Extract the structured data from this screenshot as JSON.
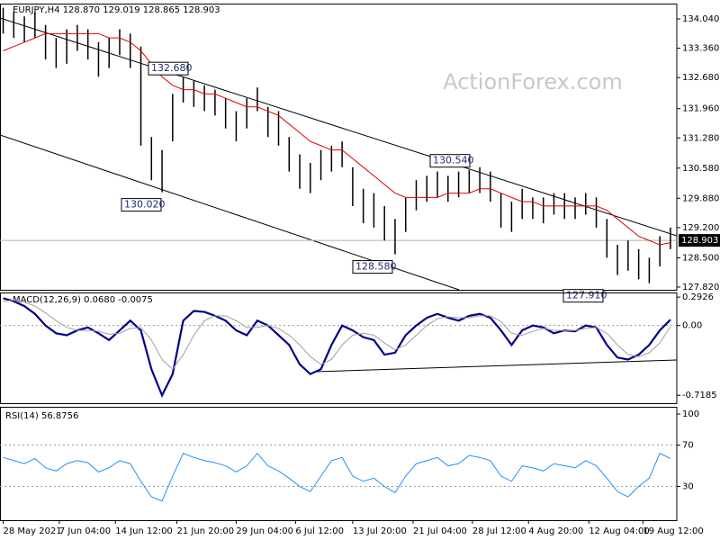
{
  "chart_data": [
    {
      "type": "hilo",
      "title": "EURJPY,H4  128.870 129.019 128.865 128.903",
      "watermark": "ActionForex.com",
      "bar_color": "#000000",
      "ma_color": "#e00000",
      "high": [
        134.3,
        134.2,
        134.1,
        134.2,
        133.9,
        133.6,
        133.8,
        133.9,
        133.8,
        133.5,
        133.6,
        133.8,
        133.7,
        133.4,
        131.3,
        131.0,
        132.3,
        132.68,
        132.6,
        132.5,
        132.4,
        132.2,
        131.9,
        132.2,
        132.45,
        132.0,
        131.9,
        131.3,
        130.9,
        130.7,
        131.0,
        131.1,
        131.2,
        130.6,
        130.1,
        130.0,
        129.7,
        129.4,
        129.9,
        130.3,
        130.4,
        130.5,
        130.4,
        130.5,
        130.54,
        130.6,
        130.5,
        130.0,
        129.8,
        130.1,
        129.9,
        129.9,
        130.0,
        130.0,
        129.9,
        130.0,
        129.9,
        129.4,
        128.8,
        128.9,
        128.7,
        128.5,
        129.0,
        129.2
      ],
      "low": [
        133.7,
        133.6,
        133.5,
        133.6,
        133.1,
        132.9,
        133.0,
        133.3,
        133.1,
        132.7,
        132.9,
        133.2,
        132.9,
        131.1,
        130.3,
        130.02,
        131.2,
        132.1,
        132.0,
        131.9,
        131.8,
        131.5,
        131.2,
        131.5,
        131.9,
        131.3,
        131.1,
        130.5,
        130.1,
        130.0,
        130.3,
        130.5,
        130.6,
        129.7,
        129.3,
        129.2,
        128.9,
        128.58,
        129.1,
        129.6,
        129.8,
        129.9,
        129.8,
        129.9,
        130.0,
        130.0,
        129.8,
        129.2,
        129.1,
        129.4,
        129.4,
        129.3,
        129.5,
        129.4,
        129.4,
        129.5,
        129.2,
        128.5,
        128.1,
        128.2,
        128.0,
        127.91,
        128.3,
        128.7
      ],
      "ma": [
        133.3,
        133.4,
        133.5,
        133.6,
        133.7,
        133.7,
        133.7,
        133.7,
        133.7,
        133.7,
        133.6,
        133.6,
        133.5,
        133.3,
        133.0,
        132.7,
        132.5,
        132.4,
        132.4,
        132.3,
        132.3,
        132.2,
        132.1,
        132.0,
        132.0,
        131.9,
        131.8,
        131.6,
        131.4,
        131.2,
        131.1,
        131.0,
        131.0,
        130.8,
        130.6,
        130.4,
        130.2,
        130.0,
        129.9,
        129.9,
        129.9,
        129.9,
        130.0,
        130.0,
        130.0,
        130.1,
        130.1,
        130.0,
        129.9,
        129.8,
        129.8,
        129.7,
        129.7,
        129.7,
        129.7,
        129.7,
        129.7,
        129.6,
        129.4,
        129.2,
        129.0,
        128.9,
        128.8,
        128.85
      ],
      "current": {
        "value": 128.903,
        "label": "128.903"
      },
      "annotations": [
        {
          "value": 132.68,
          "label": "132.680"
        },
        {
          "value": 130.02,
          "label": "130.020"
        },
        {
          "value": 128.58,
          "label": "128.580"
        },
        {
          "value": 130.54,
          "label": "130.540"
        },
        {
          "value": 127.91,
          "label": "127.910"
        }
      ],
      "ylim": [
        127.757,
        134.396
      ],
      "yticks": [
        {
          "value": 134.04,
          "label": "134.040"
        },
        {
          "value": 133.36,
          "label": "133.360"
        },
        {
          "value": 132.68,
          "label": "132.680"
        },
        {
          "value": 131.96,
          "label": "131.960"
        },
        {
          "value": 131.28,
          "label": "131.280"
        },
        {
          "value": 130.58,
          "label": "130.580"
        },
        {
          "value": 129.88,
          "label": "129.880"
        },
        {
          "value": 129.2,
          "label": "129.200"
        },
        {
          "value": 128.5,
          "label": "128.500"
        },
        {
          "value": 127.82,
          "label": "127.820"
        }
      ],
      "xlim": [
        -0.3,
        63.6
      ],
      "xticks": [
        {
          "value": 0,
          "label": "28 May 2021"
        },
        {
          "value": 5.3,
          "label": "7 Jun 04:00"
        },
        {
          "value": 10.6,
          "label": "14 Jun 12:00"
        },
        {
          "value": 16.4,
          "label": "21 Jun 20:00"
        },
        {
          "value": 22.0,
          "label": "29 Jun 04:00"
        },
        {
          "value": 27.6,
          "label": "6 Jul 12:00"
        },
        {
          "value": 33.0,
          "label": "13 Jul 20:00"
        },
        {
          "value": 38.7,
          "label": "21 Jul 04:00"
        },
        {
          "value": 44.3,
          "label": "28 Jul 12:00"
        },
        {
          "value": 49.6,
          "label": "4 Aug 20:00"
        },
        {
          "value": 55.3,
          "label": "12 Aug 04:00"
        },
        {
          "value": 60.4,
          "label": "19 Aug 12:00"
        }
      ]
    },
    {
      "type": "line",
      "title": "MACD(12,26,9) 0.0680 -0.0075",
      "series": [
        {
          "color": "#00008b",
          "values": [
            0.28,
            0.25,
            0.2,
            0.12,
            0.0,
            -0.08,
            -0.1,
            -0.05,
            -0.02,
            -0.08,
            -0.15,
            -0.05,
            0.05,
            -0.05,
            -0.45,
            -0.72,
            -0.5,
            0.05,
            0.15,
            0.14,
            0.1,
            0.05,
            -0.05,
            -0.1,
            0.05,
            0.0,
            -0.1,
            -0.2,
            -0.4,
            -0.5,
            -0.45,
            -0.2,
            0.0,
            -0.05,
            -0.12,
            -0.15,
            -0.3,
            -0.28,
            -0.1,
            0.0,
            0.08,
            0.12,
            0.08,
            0.05,
            0.1,
            0.12,
            0.08,
            -0.05,
            -0.2,
            -0.05,
            0.0,
            -0.02,
            -0.08,
            -0.05,
            -0.06,
            0.0,
            -0.02,
            -0.2,
            -0.33,
            -0.35,
            -0.3,
            -0.2,
            -0.05,
            0.06
          ]
        },
        {
          "color": "#a0a0a0",
          "values": [
            0.25,
            0.26,
            0.24,
            0.2,
            0.13,
            0.05,
            -0.02,
            -0.05,
            -0.05,
            -0.06,
            -0.09,
            -0.08,
            -0.03,
            -0.02,
            -0.15,
            -0.35,
            -0.45,
            -0.3,
            -0.1,
            0.05,
            0.1,
            0.1,
            0.05,
            -0.02,
            -0.02,
            0.0,
            -0.03,
            -0.1,
            -0.2,
            -0.32,
            -0.4,
            -0.35,
            -0.2,
            -0.1,
            -0.08,
            -0.1,
            -0.18,
            -0.25,
            -0.2,
            -0.1,
            0.0,
            0.07,
            0.09,
            0.08,
            0.08,
            0.1,
            0.1,
            0.04,
            -0.08,
            -0.1,
            -0.06,
            -0.03,
            -0.05,
            -0.05,
            -0.05,
            -0.03,
            -0.02,
            -0.08,
            -0.2,
            -0.3,
            -0.32,
            -0.28,
            -0.18,
            -0.01
          ]
        }
      ],
      "ylim": [
        -0.8,
        0.34
      ],
      "yticks": [
        0.2926,
        {
          "value": 0,
          "label": "0.00"
        },
        -0.7185
      ]
    },
    {
      "type": "line",
      "title": "RSI(14) 56.8756",
      "series": [
        {
          "color": "#1e90ff",
          "values": [
            58,
            55,
            52,
            57,
            48,
            45,
            52,
            55,
            53,
            44,
            48,
            55,
            52,
            35,
            20,
            16,
            40,
            62,
            58,
            55,
            53,
            50,
            44,
            50,
            62,
            50,
            45,
            38,
            30,
            25,
            40,
            55,
            58,
            40,
            35,
            38,
            30,
            24,
            40,
            52,
            55,
            58,
            50,
            52,
            60,
            58,
            55,
            40,
            35,
            50,
            48,
            45,
            52,
            50,
            48,
            55,
            50,
            38,
            25,
            20,
            30,
            38,
            62,
            57
          ]
        }
      ],
      "ylim": [
        -2.6,
        107
      ],
      "yticks": [
        100,
        70,
        30
      ]
    }
  ]
}
